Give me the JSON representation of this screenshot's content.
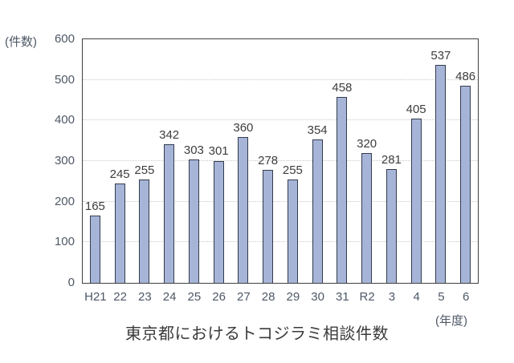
{
  "chart_data": {
    "type": "bar",
    "title": "東京都におけるトコジラミ相談件数",
    "y_axis_unit": "(件数)",
    "x_axis_unit": "(年度)",
    "categories": [
      "H21",
      "22",
      "23",
      "24",
      "25",
      "26",
      "27",
      "28",
      "29",
      "30",
      "31",
      "R2",
      "3",
      "4",
      "5",
      "6"
    ],
    "values": [
      165,
      245,
      255,
      342,
      303,
      301,
      360,
      278,
      255,
      354,
      458,
      320,
      281,
      405,
      537,
      486
    ],
    "ylim": [
      0,
      600
    ],
    "y_ticks": [
      0,
      100,
      200,
      300,
      400,
      500,
      600
    ],
    "grid": "horizontal-dotted",
    "legend_position": "none",
    "colors": {
      "bar_fill": "#a6b5d7",
      "bar_border": "#333c4e",
      "gridline": "#c9c9c9",
      "plot_border": "#404040",
      "tick_text": "#4e5866",
      "value_text": "#3d3d3d",
      "title_text": "#3a3a3a"
    }
  }
}
